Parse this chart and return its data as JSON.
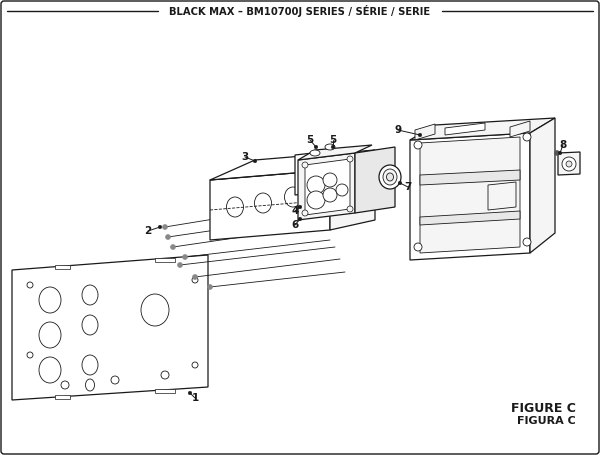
{
  "title": "BLACK MAX – BM10700J SERIES / SÉRIE / SERIE",
  "figure_label": "FIGURE C",
  "figura_label": "FIGURA C",
  "bg_color": "#ffffff",
  "line_color": "#1a1a1a",
  "fill_light": "#f5f5f5",
  "fill_mid": "#e8e8e8",
  "fill_dark": "#d0d0d0"
}
